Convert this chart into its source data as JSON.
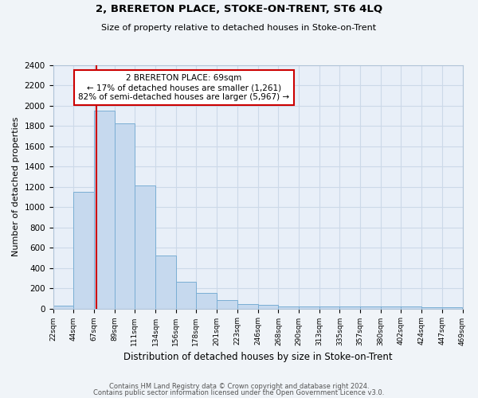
{
  "title": "2, BRERETON PLACE, STOKE-ON-TRENT, ST6 4LQ",
  "subtitle": "Size of property relative to detached houses in Stoke-on-Trent",
  "xlabel": "Distribution of detached houses by size in Stoke-on-Trent",
  "ylabel": "Number of detached properties",
  "bin_edges": [
    22,
    44,
    67,
    89,
    111,
    134,
    156,
    178,
    201,
    223,
    246,
    268,
    290,
    313,
    335,
    357,
    380,
    402,
    424,
    447,
    469
  ],
  "bar_heights": [
    30,
    1150,
    1950,
    1830,
    1215,
    520,
    265,
    150,
    85,
    45,
    38,
    20,
    20,
    20,
    20,
    20,
    20,
    20,
    15,
    15
  ],
  "tick_labels": [
    "22sqm",
    "44sqm",
    "67sqm",
    "89sqm",
    "111sqm",
    "134sqm",
    "156sqm",
    "178sqm",
    "201sqm",
    "223sqm",
    "246sqm",
    "268sqm",
    "290sqm",
    "313sqm",
    "335sqm",
    "357sqm",
    "380sqm",
    "402sqm",
    "424sqm",
    "447sqm",
    "469sqm"
  ],
  "bar_color": "#c6d9ee",
  "bar_edge_color": "#7aaed4",
  "property_line_x": 69,
  "property_line_color": "#cc0000",
  "annotation_text": "2 BRERETON PLACE: 69sqm\n← 17% of detached houses are smaller (1,261)\n82% of semi-detached houses are larger (5,967) →",
  "annotation_box_color": "#ffffff",
  "annotation_box_edge": "#cc0000",
  "ylim": [
    0,
    2400
  ],
  "yticks": [
    0,
    200,
    400,
    600,
    800,
    1000,
    1200,
    1400,
    1600,
    1800,
    2000,
    2200,
    2400
  ],
  "grid_color": "#ccd9e8",
  "bg_color": "#e8eff8",
  "fig_color": "#f0f4f8",
  "footer1": "Contains HM Land Registry data © Crown copyright and database right 2024.",
  "footer2": "Contains public sector information licensed under the Open Government Licence v3.0."
}
